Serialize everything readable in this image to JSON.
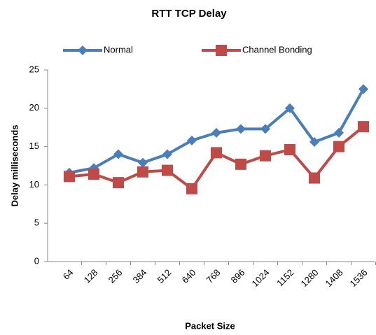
{
  "chart_data": {
    "type": "line",
    "title": "RTT TCP Delay",
    "x_label": "Packet Size",
    "y_label": "Delay milliseconds",
    "categories": [
      "64",
      "128",
      "256",
      "384",
      "512",
      "640",
      "768",
      "896",
      "1024",
      "1152",
      "1280",
      "1408",
      "1536"
    ],
    "series": [
      {
        "name": "Normal",
        "color": "#4a7ebb",
        "marker": "diamond",
        "values": [
          11.6,
          12.2,
          14.0,
          12.9,
          14.0,
          15.8,
          16.8,
          17.3,
          17.3,
          20.0,
          15.6,
          16.8,
          22.5
        ]
      },
      {
        "name": "Channel Bonding",
        "color": "#be4b48",
        "marker": "square",
        "values": [
          11.1,
          11.4,
          10.3,
          11.7,
          11.9,
          9.5,
          14.2,
          12.7,
          13.8,
          14.6,
          10.9,
          15.0,
          17.6
        ]
      }
    ],
    "ylim": [
      0,
      25
    ],
    "yticks": [
      0,
      5,
      10,
      15,
      20,
      25
    ],
    "legend": "top"
  }
}
